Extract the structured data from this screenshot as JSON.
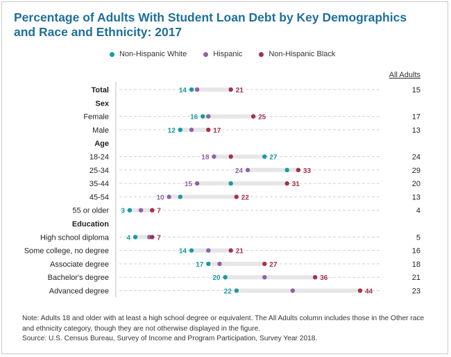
{
  "title": "Percentage of Adults With Student Loan Debt by Key Demographics and Race and Ethnicity: 2017",
  "legend": [
    {
      "name": "Non-Hispanic White",
      "color": "#1a9aa0"
    },
    {
      "name": "Hispanic",
      "color": "#8e62a8"
    },
    {
      "name": "Non-Hispanic Black",
      "color": "#a4324a"
    }
  ],
  "all_adults_header": "All Adults",
  "note": "Note: Adults 18 and older with at least a high school degree or equivalent. The All Adults column includes those in the Other race and ethnicity category, though they are not otherwise displayed in the figure.",
  "source": "Source: U.S. Census Bureau, Survey of Income and Program Participation, Survey Year 2018.",
  "chart_data": {
    "type": "dot",
    "series": [
      "Non-Hispanic White",
      "Hispanic",
      "Non-Hispanic Black"
    ],
    "rows": [
      {
        "label": "Total",
        "kind": "total",
        "white": 14,
        "hispanic": 15,
        "black": 21,
        "all": "15",
        "labels": {
          "white": "14",
          "black": "21"
        }
      },
      {
        "label": "Sex",
        "kind": "header"
      },
      {
        "label": "Female",
        "kind": "row",
        "white": 16,
        "hispanic": 17,
        "black": 25,
        "all": "17",
        "labels": {
          "white": "16",
          "black": "25"
        }
      },
      {
        "label": "Male",
        "kind": "row",
        "white": 12,
        "hispanic": 14,
        "black": 17,
        "all": "13",
        "labels": {
          "white": "12",
          "black": "17"
        }
      },
      {
        "label": "Age",
        "kind": "header"
      },
      {
        "label": "18-24",
        "kind": "row",
        "white": 27,
        "hispanic": 18,
        "black": 21,
        "all": "24",
        "labels": {
          "hispanic": "18",
          "white": "27"
        }
      },
      {
        "label": "25-34",
        "kind": "row",
        "white": 31,
        "hispanic": 24,
        "black": 33,
        "all": "29",
        "labels": {
          "hispanic": "24",
          "black": "33"
        }
      },
      {
        "label": "35-44",
        "kind": "row",
        "white": 21,
        "hispanic": 15,
        "black": 31,
        "all": "20",
        "labels": {
          "hispanic": "15",
          "black": "31"
        }
      },
      {
        "label": "45-54",
        "kind": "row",
        "white": 12,
        "hispanic": 10,
        "black": 22,
        "all": "13",
        "labels": {
          "hispanic": "10",
          "black": "22"
        }
      },
      {
        "label": "55 or older",
        "kind": "row",
        "white": 3,
        "hispanic": 5,
        "black": 7,
        "all": "4",
        "labels": {
          "white": "3",
          "black": "7"
        }
      },
      {
        "label": "Education",
        "kind": "header"
      },
      {
        "label": "High school diploma",
        "kind": "row",
        "white": 4,
        "hispanic": 6.5,
        "black": 7,
        "all": "5",
        "labels": {
          "white": "4",
          "black": "7"
        }
      },
      {
        "label": "Some college, no degree",
        "kind": "row",
        "white": 14,
        "hispanic": 17,
        "black": 21,
        "all": "16",
        "labels": {
          "white": "14",
          "black": "21"
        }
      },
      {
        "label": "Associate degree",
        "kind": "row",
        "white": 17,
        "hispanic": 19,
        "black": 27,
        "all": "18",
        "labels": {
          "white": "17",
          "black": "27"
        }
      },
      {
        "label": "Bachelor's degree",
        "kind": "row",
        "white": 20,
        "hispanic": 27,
        "black": 36,
        "all": "21",
        "labels": {
          "white": "20",
          "black": "36"
        }
      },
      {
        "label": "Advanced degree",
        "kind": "row",
        "white": 22,
        "hispanic": 32,
        "black": 44,
        "all": "23",
        "labels": {
          "white": "22",
          "black": "44"
        }
      }
    ]
  }
}
